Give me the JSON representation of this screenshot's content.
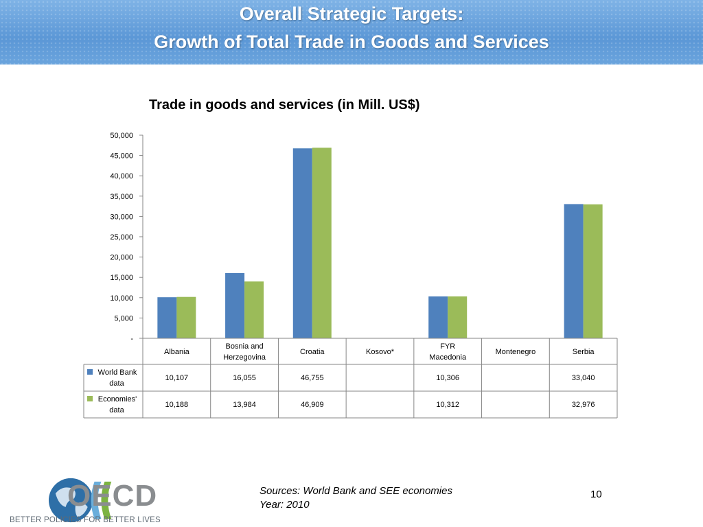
{
  "header": {
    "title_line1": "Overall Strategic Targets:",
    "title_line2": "Growth of Total Trade in Goods and Services"
  },
  "chart_data": {
    "type": "bar",
    "title": "Trade in goods and services (in Mill. US$)",
    "categories": [
      "Albania",
      "Bosnia and Herzegovina",
      "Croatia",
      "Kosovo*",
      "FYR Macedonia",
      "Montenegro",
      "Serbia"
    ],
    "category_lines": [
      [
        "Albania"
      ],
      [
        "Bosnia and",
        "Herzegovina"
      ],
      [
        "Croatia"
      ],
      [
        "Kosovo*"
      ],
      [
        "FYR",
        "Macedonia"
      ],
      [
        "Montenegro"
      ],
      [
        "Serbia"
      ]
    ],
    "series": [
      {
        "name": "World Bank data",
        "name_lines": [
          "World Bank",
          "data"
        ],
        "color": "#4f81bd",
        "values": [
          10107,
          16055,
          46755,
          null,
          10306,
          null,
          33040
        ],
        "labels": [
          "10,107",
          "16,055",
          "46,755",
          "",
          "10,306",
          "",
          "33,040"
        ]
      },
      {
        "name": "Economies' data",
        "name_lines": [
          "Economies'",
          "data"
        ],
        "color": "#9bbb59",
        "values": [
          10188,
          13984,
          46909,
          null,
          10312,
          null,
          32976
        ],
        "labels": [
          "10,188",
          "13,984",
          "46,909",
          "",
          "10,312",
          "",
          "32,976"
        ]
      }
    ],
    "ylim": [
      0,
      50000
    ],
    "yticks": [
      "-",
      "5,000",
      "10,000",
      "15,000",
      "20,000",
      "25,000",
      "30,000",
      "35,000",
      "40,000",
      "45,000",
      "50,000"
    ],
    "legend": "data-table"
  },
  "footer": {
    "sources_line1": "Sources: World Bank and SEE economies",
    "sources_line2": "Year: 2010",
    "page_number": "10",
    "logo_text": "OECD",
    "tagline": "BETTER POLICIES FOR BETTER LIVES"
  }
}
